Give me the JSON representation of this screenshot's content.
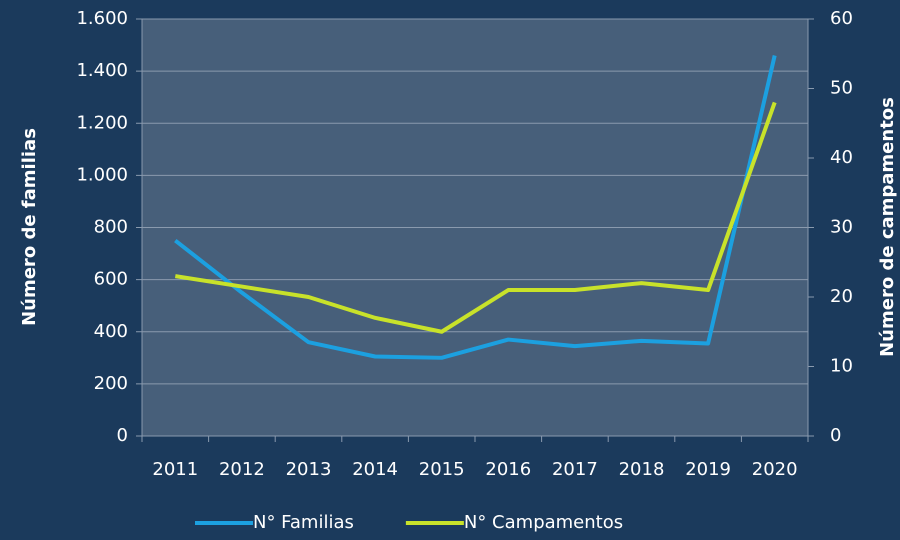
{
  "chart_data": {
    "type": "line",
    "categories": [
      "2011",
      "2012",
      "2013",
      "2014",
      "2015",
      "2016",
      "2017",
      "2018",
      "2019",
      "2020"
    ],
    "series": [
      {
        "name": "N° Familias",
        "color": "#1ca0e0",
        "values": [
          750,
          550,
          360,
          305,
          300,
          370,
          345,
          365,
          355,
          1460
        ]
      },
      {
        "name": "N° Campamentos",
        "color": "#c8e22a",
        "axis": "y2",
        "values": [
          23,
          21.5,
          20,
          17,
          15,
          21,
          21,
          22,
          21,
          48
        ]
      }
    ],
    "ylabel": "Número de familias",
    "y2label": "Número de campamentos",
    "ylim": [
      0,
      1600
    ],
    "yticks": [
      0,
      200,
      400,
      600,
      800,
      {
        "value": 1000,
        "label": "1.000"
      },
      {
        "value": 1200,
        "label": "1.200"
      },
      {
        "value": 1400,
        "label": "1.400"
      },
      {
        "value": 1600,
        "label": "1.600"
      }
    ],
    "y2lim": [
      0,
      60
    ],
    "y2ticks": [
      0,
      10,
      20,
      30,
      40,
      50,
      60
    ],
    "grid": true,
    "legend": "bottom",
    "background": "#1b3a5c",
    "plot_background": "#475f7a"
  }
}
